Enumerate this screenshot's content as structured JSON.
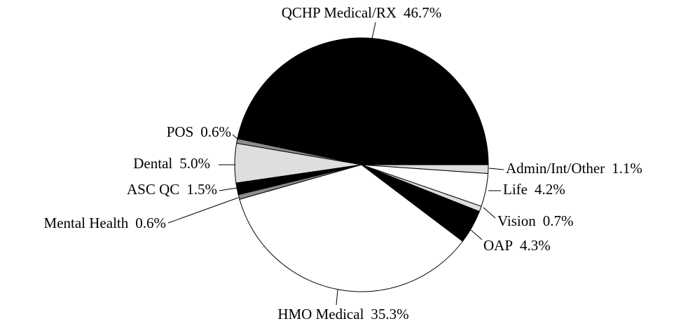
{
  "chart_data": {
    "type": "pie",
    "categories": [
      "QCHP Medical/RX",
      "POS",
      "Dental",
      "ASC QC",
      "Mental Health",
      "HMO Medical",
      "OAP",
      "Vision",
      "Life",
      "Admin/Int/Other"
    ],
    "values": [
      46.7,
      0.6,
      5.0,
      1.5,
      0.6,
      35.3,
      4.3,
      0.7,
      4.2,
      1.1
    ],
    "value_labels": [
      "46.7%",
      "0.6%",
      "5.0%",
      "1.5%",
      "0.6%",
      "35.3%",
      "4.3%",
      "0.7%",
      "4.2%",
      "1.1%"
    ],
    "colors": [
      "#000000",
      "#8c8c8c",
      "#dedede",
      "#000000",
      "#8c8c8c",
      "#ffffff",
      "#000000",
      "#dedede",
      "#ffffff",
      "#dedede"
    ]
  }
}
